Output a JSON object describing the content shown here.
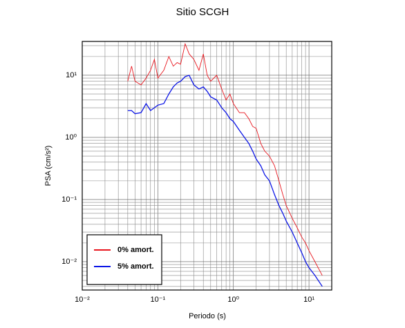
{
  "chart_data": {
    "type": "line",
    "title": "Sitio SCGH",
    "x_label": "Periodo (s)",
    "y_label": "PSA (cm/s²)",
    "log_x": true,
    "log_y": true,
    "grid": true,
    "legend": "lower left",
    "xlim": [
      0.01,
      20
    ],
    "ylim": [
      0.0035,
      35
    ],
    "xticks": [
      {
        "value": 0.01,
        "label": "10⁻²"
      },
      {
        "value": 0.1,
        "label": "10⁻¹"
      },
      {
        "value": 1,
        "label": "10⁰"
      },
      {
        "value": 10,
        "label": "10¹"
      }
    ],
    "yticks": [
      {
        "value": 0.01,
        "label": "10⁻²"
      },
      {
        "value": 0.1,
        "label": "10⁻¹"
      },
      {
        "value": 1,
        "label": "10⁰"
      },
      {
        "value": 10,
        "label": "10¹"
      }
    ],
    "x": [
      0.04,
      0.045,
      0.05,
      0.06,
      0.07,
      0.08,
      0.09,
      0.1,
      0.12,
      0.14,
      0.16,
      0.18,
      0.2,
      0.23,
      0.26,
      0.3,
      0.35,
      0.4,
      0.45,
      0.5,
      0.6,
      0.7,
      0.8,
      0.9,
      1,
      1.2,
      1.4,
      1.6,
      1.8,
      2,
      2.3,
      2.6,
      3,
      3.5,
      4,
      4.5,
      5,
      6,
      7,
      8,
      9,
      10,
      12,
      15
    ],
    "series": [
      {
        "name": "0% amort.",
        "color": "#e8141c",
        "values": [
          8,
          14,
          8,
          7,
          9,
          12,
          18,
          9,
          12,
          20,
          14,
          16,
          15,
          32,
          22,
          18,
          12,
          22,
          10,
          8,
          10,
          6,
          4,
          5,
          3.5,
          2.5,
          2.5,
          2,
          1.5,
          1.4,
          0.8,
          0.6,
          0.5,
          0.35,
          0.2,
          0.12,
          0.08,
          0.05,
          0.035,
          0.025,
          0.02,
          0.015,
          0.01,
          0.006
        ]
      },
      {
        "name": "5% amort.",
        "color": "#0a14e6",
        "values": [
          2.7,
          2.7,
          2.4,
          2.5,
          3.5,
          2.7,
          3,
          3.3,
          3.5,
          5,
          6.5,
          7.5,
          8,
          9.5,
          10,
          7,
          6,
          6.5,
          5.5,
          4.5,
          4,
          3,
          2.5,
          2,
          1.8,
          1.3,
          1,
          0.8,
          0.6,
          0.45,
          0.35,
          0.25,
          0.2,
          0.12,
          0.08,
          0.06,
          0.045,
          0.03,
          0.02,
          0.014,
          0.01,
          0.008,
          0.006,
          0.004
        ]
      }
    ]
  }
}
